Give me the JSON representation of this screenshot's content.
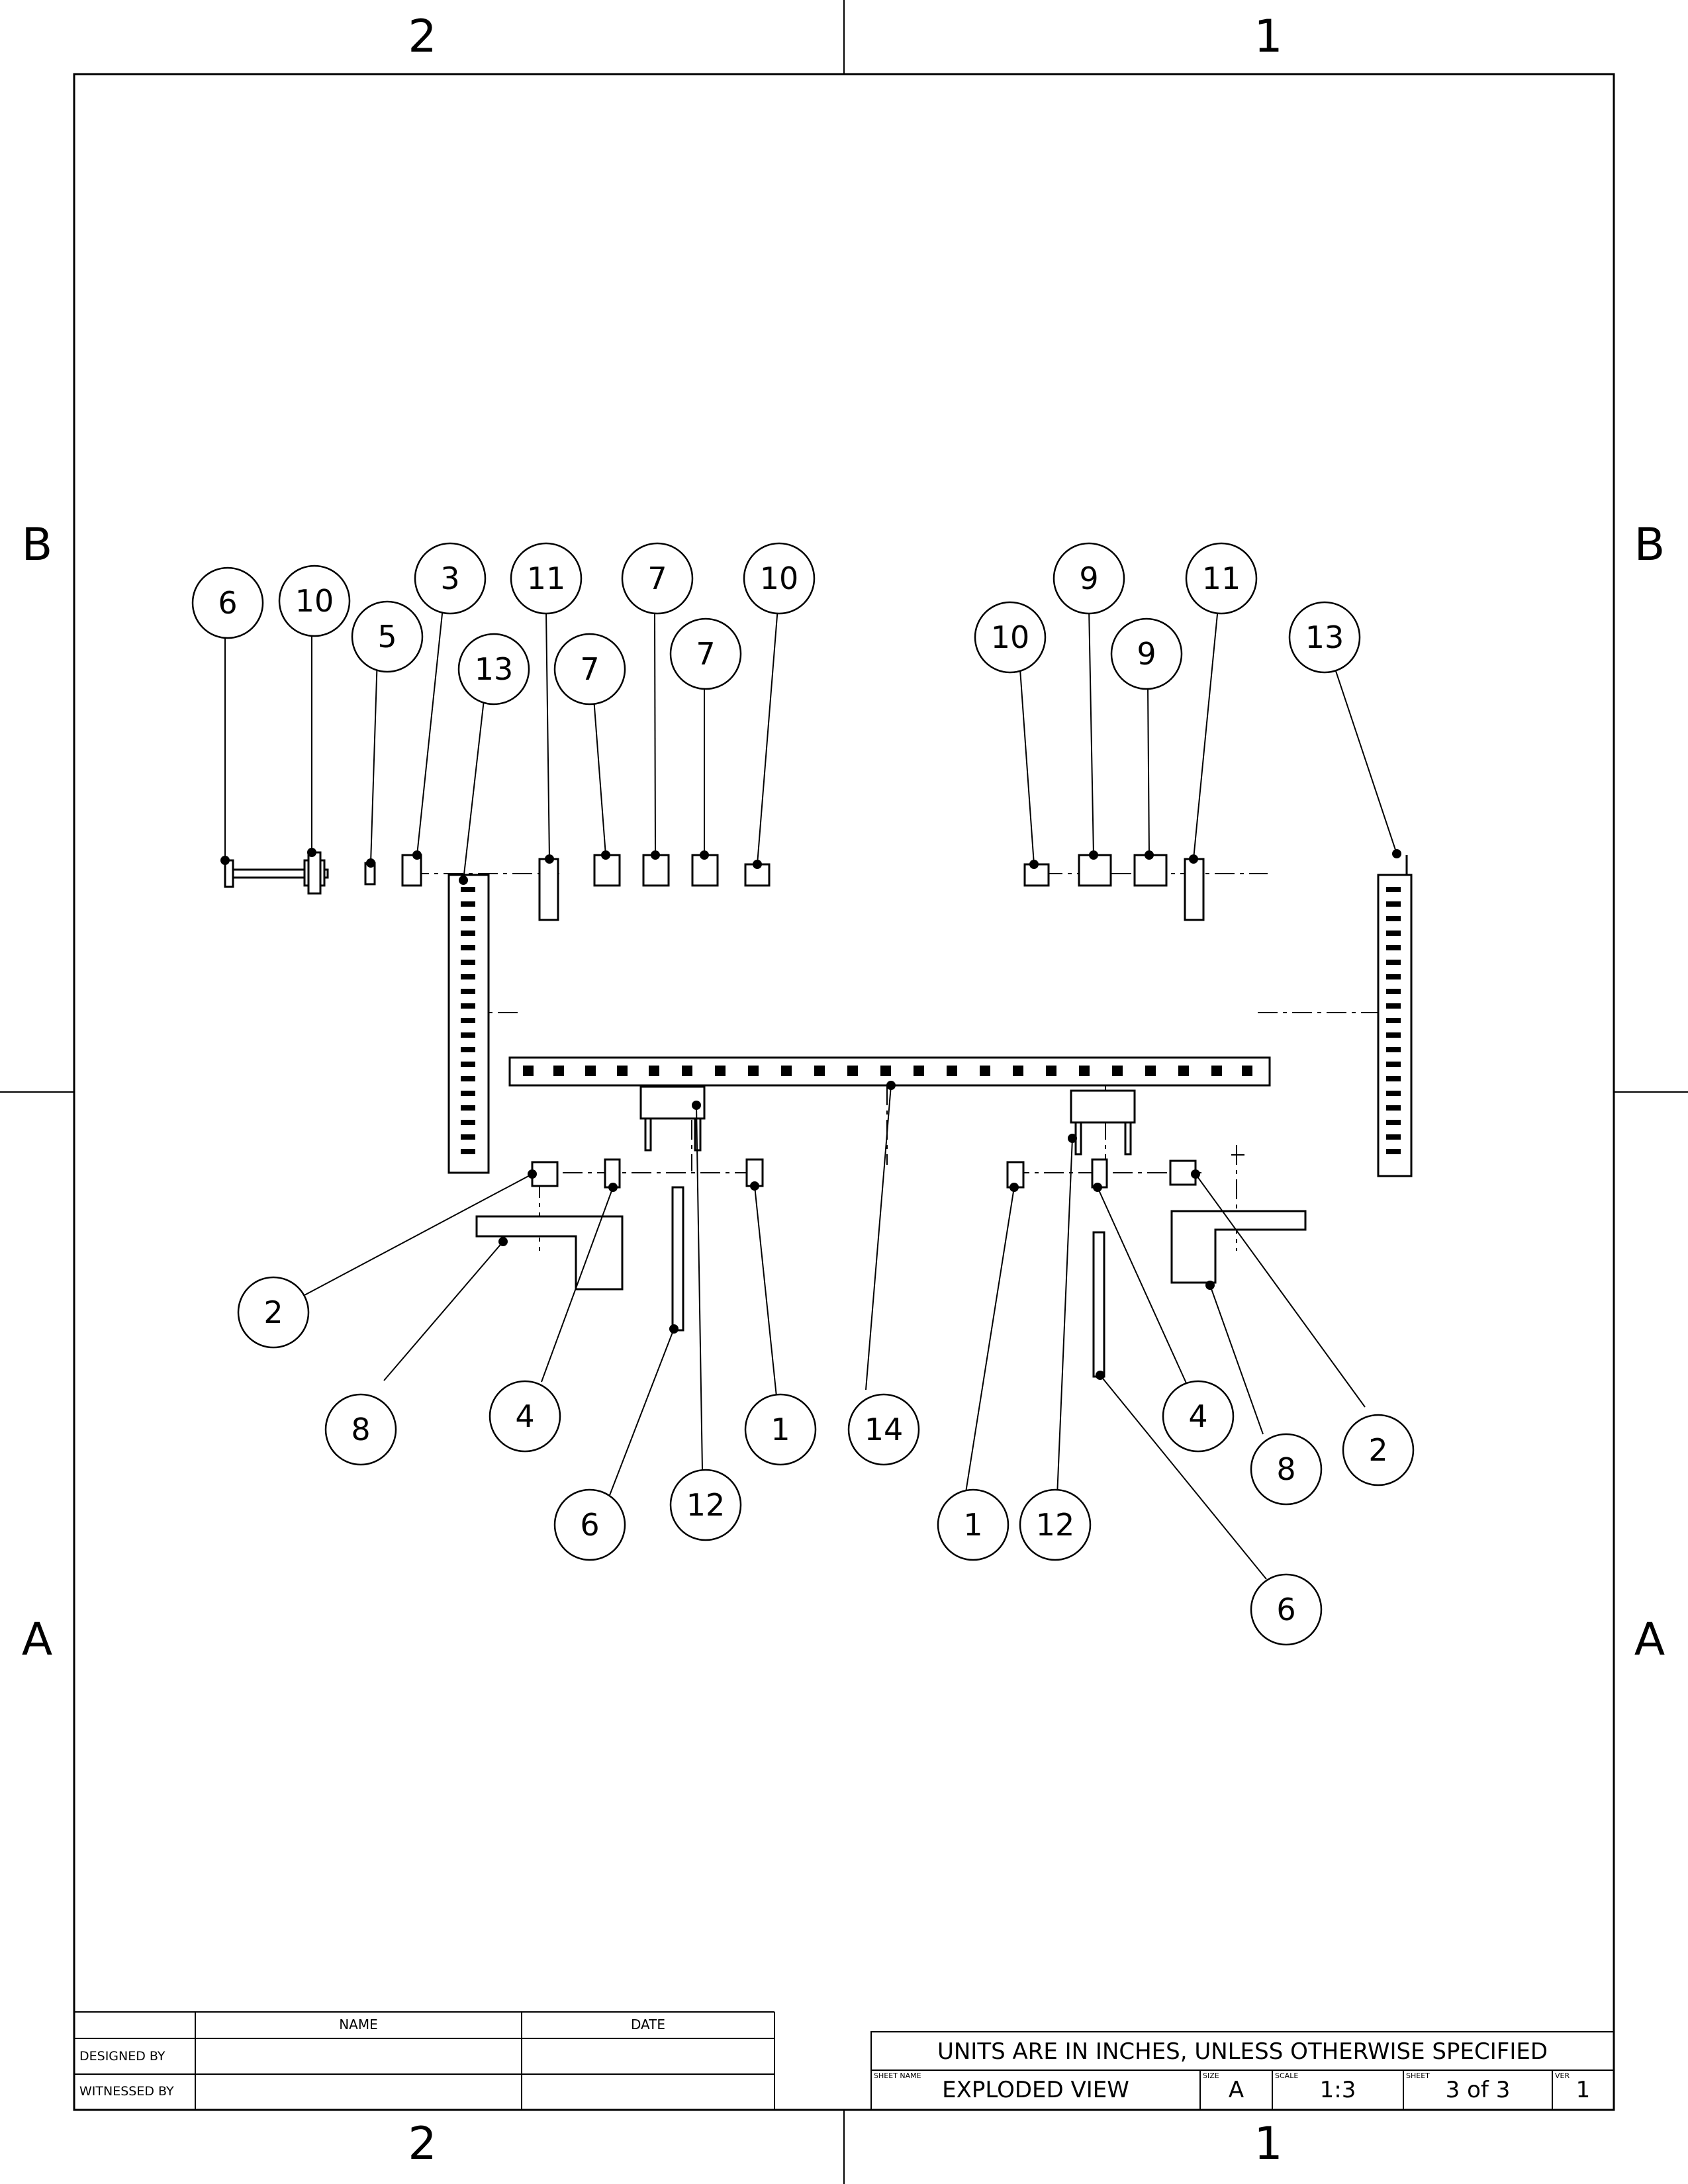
{
  "zones": {
    "columns": [
      "2",
      "1"
    ],
    "rows": [
      "B",
      "A"
    ]
  },
  "balloons": [
    {
      "label": "6"
    },
    {
      "label": "10"
    },
    {
      "label": "5"
    },
    {
      "label": "3"
    },
    {
      "label": "13"
    },
    {
      "label": "11"
    },
    {
      "label": "7"
    },
    {
      "label": "7"
    },
    {
      "label": "7"
    },
    {
      "label": "10"
    },
    {
      "label": "10"
    },
    {
      "label": "9"
    },
    {
      "label": "9"
    },
    {
      "label": "11"
    },
    {
      "label": "13"
    },
    {
      "label": "2"
    },
    {
      "label": "8"
    },
    {
      "label": "4"
    },
    {
      "label": "6"
    },
    {
      "label": "12"
    },
    {
      "label": "1"
    },
    {
      "label": "14"
    },
    {
      "label": "1"
    },
    {
      "label": "12"
    },
    {
      "label": "4"
    },
    {
      "label": "8"
    },
    {
      "label": "2"
    },
    {
      "label": "6"
    }
  ],
  "signature_block": {
    "name_header": "NAME",
    "date_header": "DATE",
    "designed_by": "DESIGNED BY",
    "witnessed_by": "WITNESSED BY"
  },
  "title_block": {
    "units_note": "UNITS ARE IN INCHES, UNLESS OTHERWISE SPECIFIED",
    "sheet_name_label": "SHEET NAME",
    "sheet_name": "EXPLODED VIEW",
    "size_label": "SIZE",
    "size": "A",
    "scale_label": "SCALE",
    "scale": "1:3",
    "sheet_label": "SHEET",
    "sheet": "3 of 3",
    "ver_label": "VER",
    "ver": "1"
  }
}
